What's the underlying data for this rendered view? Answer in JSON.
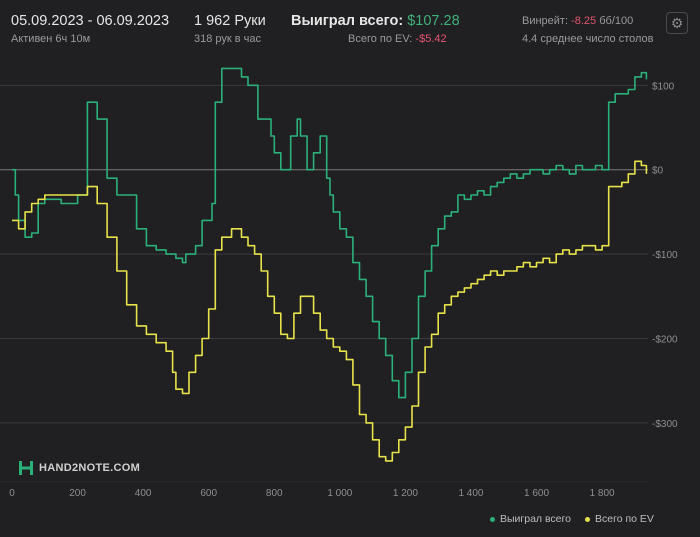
{
  "header": {
    "date_range": "05.09.2023 - 06.09.2023",
    "active": "Активен 6ч 10м",
    "hands": "1 962 Руки",
    "hands_per_hour": "318 рук в час",
    "won_label": "Выиграл всего:",
    "won_value": "$107.28",
    "ev_label": "Всего по EV:",
    "ev_value": "-$5.42",
    "winrate_label": "Винрейт:",
    "winrate_value": "-8.25",
    "winrate_unit": "бб/100",
    "avg_tables": "4.4 среднее число столов"
  },
  "logo": {
    "text": "HAND2NOTE.COM",
    "icon": "h2n-logo-icon"
  },
  "settings": {
    "icon": "gear-icon"
  },
  "colors": {
    "won": "#2bb07a",
    "ev": "#e8e24a",
    "background": "#202023",
    "grid": "#3a3a3e"
  },
  "chart_data": {
    "type": "line",
    "title": "",
    "xlabel": "",
    "ylabel": "",
    "xlim": [
      0,
      1940
    ],
    "ylim": [
      -370,
      130
    ],
    "x_ticks": [
      0,
      200,
      400,
      600,
      800,
      1000,
      1200,
      1400,
      1600,
      1800
    ],
    "x_tick_labels": [
      "0",
      "200",
      "400",
      "600",
      "800",
      "1 000",
      "1 200",
      "1 400",
      "1 600",
      "1 800"
    ],
    "y_ticks": [
      100,
      0,
      -100,
      -200,
      -300
    ],
    "y_tick_labels": [
      "$100",
      "$0",
      "-$100",
      "-$200",
      "-$300"
    ],
    "zero_line": true,
    "grid": "horizontal",
    "legend_position": "bottom-right",
    "series": [
      {
        "name": "Выиграл всего",
        "color": "#2bb07a",
        "points": [
          [
            0,
            0
          ],
          [
            10,
            -30
          ],
          [
            20,
            -60
          ],
          [
            40,
            -80
          ],
          [
            60,
            -75
          ],
          [
            80,
            -40
          ],
          [
            100,
            -35
          ],
          [
            150,
            -40
          ],
          [
            200,
            -30
          ],
          [
            230,
            80
          ],
          [
            260,
            60
          ],
          [
            290,
            -10
          ],
          [
            320,
            -30
          ],
          [
            350,
            -30
          ],
          [
            380,
            -70
          ],
          [
            410,
            -90
          ],
          [
            440,
            -95
          ],
          [
            470,
            -100
          ],
          [
            500,
            -105
          ],
          [
            520,
            -110
          ],
          [
            530,
            -100
          ],
          [
            560,
            -90
          ],
          [
            580,
            -60
          ],
          [
            610,
            -40
          ],
          [
            620,
            80
          ],
          [
            640,
            120
          ],
          [
            670,
            120
          ],
          [
            700,
            110
          ],
          [
            720,
            100
          ],
          [
            750,
            60
          ],
          [
            770,
            60
          ],
          [
            790,
            40
          ],
          [
            800,
            20
          ],
          [
            820,
            0
          ],
          [
            850,
            40
          ],
          [
            870,
            60
          ],
          [
            880,
            40
          ],
          [
            900,
            0
          ],
          [
            920,
            20
          ],
          [
            940,
            40
          ],
          [
            960,
            -10
          ],
          [
            970,
            -30
          ],
          [
            980,
            -50
          ],
          [
            1000,
            -70
          ],
          [
            1020,
            -80
          ],
          [
            1040,
            -110
          ],
          [
            1060,
            -130
          ],
          [
            1080,
            -150
          ],
          [
            1100,
            -180
          ],
          [
            1120,
            -200
          ],
          [
            1140,
            -220
          ],
          [
            1160,
            -250
          ],
          [
            1180,
            -270
          ],
          [
            1200,
            -240
          ],
          [
            1220,
            -200
          ],
          [
            1240,
            -150
          ],
          [
            1260,
            -120
          ],
          [
            1280,
            -90
          ],
          [
            1300,
            -70
          ],
          [
            1320,
            -55
          ],
          [
            1340,
            -50
          ],
          [
            1360,
            -30
          ],
          [
            1380,
            -35
          ],
          [
            1400,
            -30
          ],
          [
            1420,
            -25
          ],
          [
            1440,
            -30
          ],
          [
            1460,
            -20
          ],
          [
            1480,
            -15
          ],
          [
            1500,
            -10
          ],
          [
            1520,
            -5
          ],
          [
            1540,
            -10
          ],
          [
            1560,
            -5
          ],
          [
            1580,
            0
          ],
          [
            1600,
            0
          ],
          [
            1620,
            -5
          ],
          [
            1640,
            0
          ],
          [
            1660,
            5
          ],
          [
            1680,
            0
          ],
          [
            1700,
            -5
          ],
          [
            1720,
            5
          ],
          [
            1740,
            0
          ],
          [
            1760,
            0
          ],
          [
            1780,
            5
          ],
          [
            1800,
            0
          ],
          [
            1820,
            80
          ],
          [
            1840,
            90
          ],
          [
            1860,
            90
          ],
          [
            1880,
            95
          ],
          [
            1900,
            110
          ],
          [
            1920,
            115
          ],
          [
            1935,
            107
          ]
        ]
      },
      {
        "name": "Всего по EV",
        "color": "#e8e24a",
        "points": [
          [
            0,
            -60
          ],
          [
            20,
            -70
          ],
          [
            40,
            -50
          ],
          [
            60,
            -40
          ],
          [
            80,
            -35
          ],
          [
            100,
            -30
          ],
          [
            140,
            -30
          ],
          [
            200,
            -30
          ],
          [
            230,
            -20
          ],
          [
            260,
            -40
          ],
          [
            290,
            -80
          ],
          [
            320,
            -120
          ],
          [
            350,
            -160
          ],
          [
            380,
            -185
          ],
          [
            410,
            -195
          ],
          [
            440,
            -205
          ],
          [
            470,
            -215
          ],
          [
            490,
            -240
          ],
          [
            500,
            -260
          ],
          [
            520,
            -265
          ],
          [
            540,
            -240
          ],
          [
            560,
            -220
          ],
          [
            580,
            -200
          ],
          [
            600,
            -165
          ],
          [
            620,
            -95
          ],
          [
            640,
            -80
          ],
          [
            670,
            -70
          ],
          [
            700,
            -80
          ],
          [
            720,
            -90
          ],
          [
            740,
            -100
          ],
          [
            760,
            -120
          ],
          [
            780,
            -150
          ],
          [
            800,
            -170
          ],
          [
            820,
            -195
          ],
          [
            840,
            -200
          ],
          [
            860,
            -170
          ],
          [
            880,
            -150
          ],
          [
            900,
            -150
          ],
          [
            920,
            -170
          ],
          [
            940,
            -190
          ],
          [
            960,
            -200
          ],
          [
            980,
            -210
          ],
          [
            1000,
            -215
          ],
          [
            1020,
            -225
          ],
          [
            1040,
            -255
          ],
          [
            1060,
            -290
          ],
          [
            1080,
            -300
          ],
          [
            1100,
            -320
          ],
          [
            1120,
            -340
          ],
          [
            1140,
            -345
          ],
          [
            1160,
            -335
          ],
          [
            1180,
            -320
          ],
          [
            1200,
            -305
          ],
          [
            1220,
            -280
          ],
          [
            1240,
            -240
          ],
          [
            1260,
            -210
          ],
          [
            1280,
            -195
          ],
          [
            1300,
            -170
          ],
          [
            1320,
            -160
          ],
          [
            1340,
            -150
          ],
          [
            1360,
            -145
          ],
          [
            1380,
            -140
          ],
          [
            1400,
            -135
          ],
          [
            1420,
            -130
          ],
          [
            1440,
            -125
          ],
          [
            1460,
            -120
          ],
          [
            1480,
            -125
          ],
          [
            1500,
            -120
          ],
          [
            1520,
            -120
          ],
          [
            1540,
            -115
          ],
          [
            1560,
            -110
          ],
          [
            1580,
            -115
          ],
          [
            1600,
            -110
          ],
          [
            1620,
            -105
          ],
          [
            1640,
            -110
          ],
          [
            1660,
            -100
          ],
          [
            1680,
            -95
          ],
          [
            1700,
            -100
          ],
          [
            1720,
            -95
          ],
          [
            1740,
            -90
          ],
          [
            1760,
            -90
          ],
          [
            1780,
            -95
          ],
          [
            1800,
            -90
          ],
          [
            1820,
            -20
          ],
          [
            1840,
            -20
          ],
          [
            1860,
            -15
          ],
          [
            1880,
            -5
          ],
          [
            1900,
            10
          ],
          [
            1920,
            5
          ],
          [
            1935,
            -5
          ]
        ]
      }
    ]
  }
}
